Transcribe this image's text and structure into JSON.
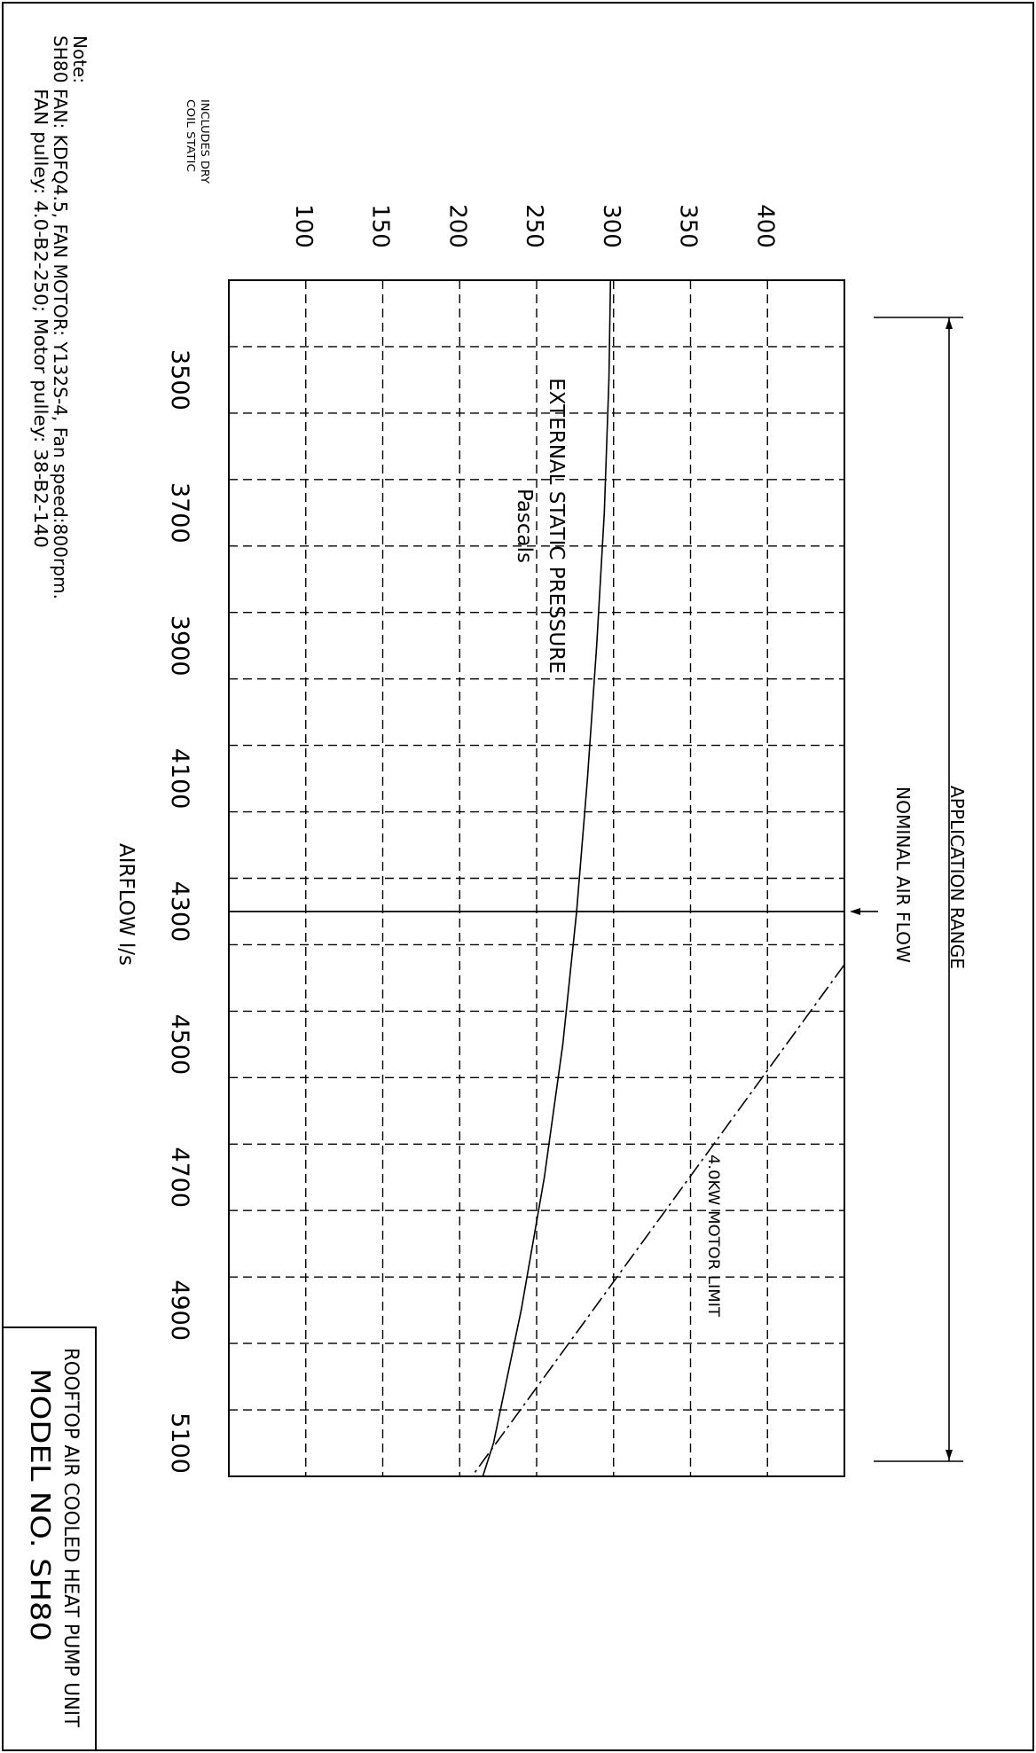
{
  "note": {
    "heading": "Note:",
    "line1": "SH80 FAN: KDFQ4.5, FAN MOTOR: Y132S-4, Fan speed:800rpm.",
    "line2": "FAN  pulley: 4.0-B2-250; Motor pulley: 38-B2-140"
  },
  "title_block": {
    "line1": "ROOFTOP AIR COOLED HEAT PUMP UNIT",
    "line2": "MODEL NO. SH80"
  },
  "chart_data": {
    "type": "line",
    "x_axis": {
      "label": "AIRFLOW l/s",
      "ticks": [
        3500,
        3700,
        3900,
        4100,
        4300,
        4500,
        4700,
        4900,
        5100
      ],
      "range": [
        3350,
        5150
      ],
      "gridline_step": 100
    },
    "y_axis": {
      "label": "EXTERNAL STATIC PRESSURE",
      "unit": "Pascals",
      "side_note": [
        "INCLUDES DRY",
        "COIL STATIC"
      ],
      "ticks": [
        100,
        150,
        200,
        250,
        300,
        350,
        400
      ],
      "range": [
        50,
        450
      ]
    },
    "grid": true,
    "series": [
      {
        "id": "fan-curve",
        "style": "solid",
        "x": [
          3350,
          3500,
          3700,
          3900,
          4100,
          4300,
          4500,
          4700,
          4900,
          5100,
          5150
        ],
        "y": [
          298,
          297,
          294,
          289,
          283,
          276,
          267,
          255,
          240,
          222,
          215
        ]
      },
      {
        "id": "motor-limit",
        "name": "4.0KW  MOTOR LIMIT",
        "style": "dash-dot",
        "x": [
          4380,
          5150
        ],
        "y": [
          450,
          208
        ]
      }
    ],
    "annotations": {
      "nominal_air_flow": {
        "label": "NOMINAL AIR FLOW",
        "x": 4300
      },
      "application_range": {
        "label": "APPLICATION RANGE",
        "from": 3400,
        "to": 5120
      }
    }
  }
}
